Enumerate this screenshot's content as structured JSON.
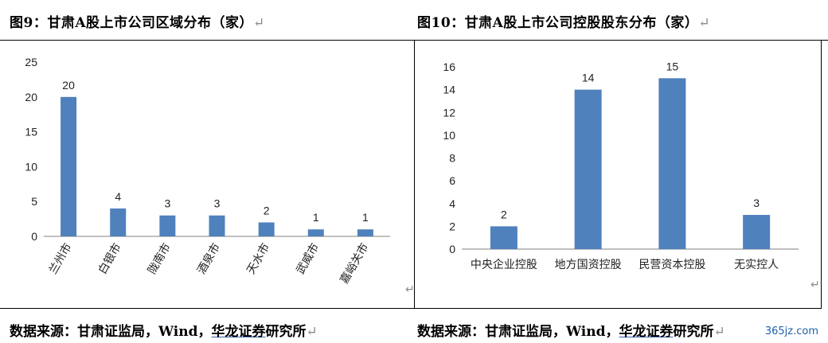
{
  "left": {
    "title": "图9：甘肃A股上市公司区域分布（家）",
    "source": "数据来源：甘肃证监局，Wind，",
    "source_hl": "华龙证券",
    "source_tail": "研究所",
    "ret": "↵"
  },
  "right": {
    "title": "图10：甘肃A股上市公司控股股东分布（家）",
    "source": "数据来源：甘肃证监局，Wind，",
    "source_hl": "华龙证券",
    "source_tail": "研究所",
    "ret": "↵"
  },
  "watermark": "365jz.com",
  "colors": {
    "bar": "#4f81bd",
    "axis": "#7f7f7f"
  },
  "chart_data": [
    {
      "type": "bar",
      "title": "图9：甘肃A股上市公司区域分布（家）",
      "categories": [
        "兰州市",
        "白银市",
        "陇南市",
        "酒泉市",
        "天水市",
        "武威市",
        "嘉峪关市"
      ],
      "values": [
        20,
        4,
        3,
        3,
        2,
        1,
        1
      ],
      "ylim": [
        0,
        25
      ],
      "yticks": [
        0,
        5,
        10,
        15,
        20,
        25
      ],
      "xlabel": "",
      "ylabel": "",
      "grid": false,
      "category_label_rotation": "rotated"
    },
    {
      "type": "bar",
      "title": "图10：甘肃A股上市公司控股股东分布（家）",
      "categories": [
        "中央企业控股",
        "地方国资控股",
        "民营资本控股",
        "无实控人"
      ],
      "values": [
        2,
        14,
        15,
        3
      ],
      "ylim": [
        0,
        16
      ],
      "yticks": [
        0,
        2,
        4,
        6,
        8,
        10,
        12,
        14,
        16
      ],
      "xlabel": "",
      "ylabel": "",
      "grid": false,
      "category_label_rotation": "horizontal"
    }
  ]
}
